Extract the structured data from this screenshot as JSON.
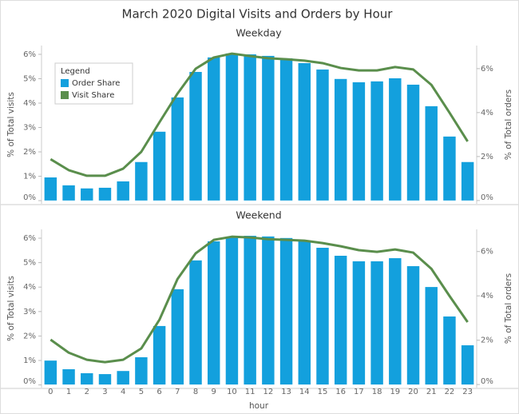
{
  "chart_data": [
    {
      "type": "bar",
      "title": "March 2020 Digital Visits and Orders by Hour",
      "subtitle": "Weekday",
      "y_label": "% of Total visits",
      "y2_label": "% of Total orders",
      "legend_title": "Legend",
      "legend": "upper left",
      "ylim": [
        -0.13,
        6.36
      ],
      "y2lim": [
        -0.15,
        7.05
      ],
      "yticks": [
        {
          "value": 0,
          "label": "0%"
        },
        {
          "value": 1,
          "label": "1%"
        },
        {
          "value": 2,
          "label": "2%"
        },
        {
          "value": 3,
          "label": "3%"
        },
        {
          "value": 4,
          "label": "4%"
        },
        {
          "value": 5,
          "label": "5%"
        },
        {
          "value": 6,
          "label": "6%"
        }
      ],
      "y2ticks": [
        {
          "value": 0,
          "label": "0%"
        },
        {
          "value": 2,
          "label": "2%"
        },
        {
          "value": 4,
          "label": "4%"
        },
        {
          "value": 6,
          "label": "6%"
        }
      ],
      "series": [
        {
          "name": "Order Share",
          "type": "bar",
          "axis": "y2",
          "color": "#13a0dd",
          "values": [
            1.05,
            0.69,
            0.55,
            0.58,
            0.87,
            1.75,
            3.13,
            4.69,
            5.85,
            6.51,
            6.69,
            6.65,
            6.58,
            6.47,
            6.25,
            5.96,
            5.53,
            5.38,
            5.42,
            5.56,
            5.27,
            4.29,
            2.91,
            1.75
          ]
        },
        {
          "name": "Visit Share",
          "type": "line",
          "axis": "y",
          "color": "#5a8e4c",
          "values": [
            1.7,
            1.25,
            1.02,
            1.02,
            1.31,
            2.0,
            3.21,
            4.39,
            5.41,
            5.87,
            6.03,
            5.93,
            5.84,
            5.8,
            5.74,
            5.64,
            5.44,
            5.34,
            5.34,
            5.48,
            5.38,
            4.75,
            3.61,
            2.43
          ]
        }
      ]
    },
    {
      "type": "bar",
      "subtitle": "Weekend",
      "x_label": "hour",
      "y_label": "% of Total visits",
      "y2_label": "% of Total orders",
      "categories": [
        "0",
        "1",
        "2",
        "3",
        "4",
        "5",
        "6",
        "7",
        "8",
        "9",
        "10",
        "11",
        "12",
        "13",
        "14",
        "15",
        "16",
        "17",
        "18",
        "19",
        "20",
        "21",
        "22",
        "23"
      ],
      "ylim": [
        -0.11,
        6.36
      ],
      "y2lim": [
        -0.14,
        7.0
      ],
      "yticks": [
        {
          "value": 0,
          "label": "0%"
        },
        {
          "value": 1,
          "label": "1%"
        },
        {
          "value": 2,
          "label": "2%"
        },
        {
          "value": 3,
          "label": "3%"
        },
        {
          "value": 4,
          "label": "4%"
        },
        {
          "value": 5,
          "label": "5%"
        },
        {
          "value": 6,
          "label": "6%"
        }
      ],
      "y2ticks": [
        {
          "value": 0,
          "label": "0%"
        },
        {
          "value": 2,
          "label": "2%"
        },
        {
          "value": 4,
          "label": "4%"
        },
        {
          "value": 6,
          "label": "6%"
        }
      ],
      "series": [
        {
          "type": "bar",
          "axis": "y2",
          "color": "#13a0dd",
          "values": [
            1.08,
            0.69,
            0.51,
            0.47,
            0.61,
            1.23,
            2.64,
            4.3,
            5.6,
            6.46,
            6.64,
            6.71,
            6.68,
            6.61,
            6.46,
            6.17,
            5.81,
            5.56,
            5.56,
            5.7,
            5.34,
            4.4,
            3.07,
            1.77
          ]
        },
        {
          "type": "line",
          "axis": "y",
          "color": "#5a8e4c",
          "values": [
            1.85,
            1.32,
            1.03,
            0.93,
            1.03,
            1.49,
            2.66,
            4.33,
            5.38,
            5.93,
            6.06,
            6.03,
            5.96,
            5.93,
            5.9,
            5.8,
            5.67,
            5.51,
            5.44,
            5.54,
            5.41,
            4.75,
            3.64,
            2.57
          ]
        }
      ]
    }
  ]
}
